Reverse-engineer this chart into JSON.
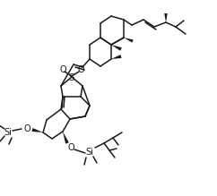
{
  "bg_color": "#ffffff",
  "line_color": "#1a1a1a",
  "line_width": 1.1,
  "fig_width": 2.42,
  "fig_height": 2.19,
  "dpi": 100,
  "label_O": "O",
  "label_S": "S",
  "label_Si": "Si"
}
